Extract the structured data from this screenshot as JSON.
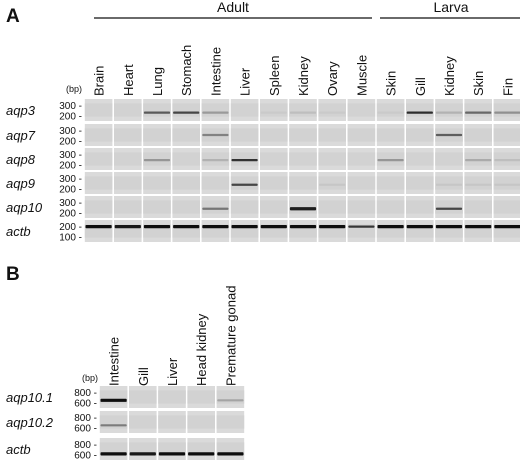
{
  "panel_a": {
    "letter": "A",
    "groups": [
      {
        "label": "Adult",
        "lanes": 10
      },
      {
        "label": "Larva",
        "lanes": 5
      }
    ],
    "lanes": [
      "Brain",
      "Heart",
      "Lung",
      "Stomach",
      "Intestine",
      "Liver",
      "Spleen",
      "Kidney",
      "Ovary",
      "Muscle",
      "Skin",
      "Gill",
      "Kidney",
      "Skin",
      "Fin"
    ],
    "unit": "(bp)",
    "rows": [
      {
        "gene": "aqp3",
        "ticks": [
          "300 -",
          "200 -"
        ],
        "bands": [
          0,
          0,
          0.62,
          0.72,
          0.3,
          0,
          0.06,
          0.12,
          0.06,
          0,
          0.06,
          0.85,
          0.18,
          0.55,
          0.35
        ],
        "band_pos": 0.62
      },
      {
        "gene": "aqp7",
        "ticks": [
          "300 -",
          "200 -"
        ],
        "bands": [
          0,
          0,
          0,
          0,
          0.42,
          0,
          0,
          0,
          0,
          0,
          0,
          0,
          0.6,
          0,
          0
        ],
        "band_pos": 0.5
      },
      {
        "gene": "aqp8",
        "ticks": [
          "300 -",
          "200 -"
        ],
        "bands": [
          0,
          0,
          0.32,
          0,
          0.18,
          0.82,
          0,
          0,
          0,
          0,
          0.32,
          0,
          0,
          0.22,
          0.12
        ],
        "band_pos": 0.55
      },
      {
        "gene": "aqp9",
        "ticks": [
          "300 -",
          "200 -"
        ],
        "bands": [
          0,
          0,
          0,
          0,
          0,
          0.72,
          0,
          0,
          0.08,
          0,
          0,
          0,
          0.08,
          0.08,
          0.08
        ],
        "band_pos": 0.58
      },
      {
        "gene": "aqp10",
        "ticks": [
          "300 -",
          "200 -"
        ],
        "bands": [
          0,
          0,
          0,
          0,
          0.48,
          0,
          0,
          0.92,
          0,
          0,
          0,
          0,
          0.72,
          0,
          0
        ],
        "band_pos": 0.58
      },
      {
        "gene": "actb",
        "ticks": [
          "200 -",
          "100 -"
        ],
        "bands": [
          1,
          0.95,
          1,
          1,
          1,
          1,
          1,
          1,
          1,
          0.8,
          1,
          1,
          1,
          1,
          1
        ],
        "band_pos": 0.3
      }
    ]
  },
  "panel_b": {
    "letter": "B",
    "lanes": [
      "Intestine",
      "Gill",
      "Liver",
      "Head kidney",
      "Premature gonad"
    ],
    "unit": "(bp)",
    "rows": [
      {
        "gene": "aqp10.1",
        "ticks": [
          "800 -",
          "600 -"
        ],
        "bands": [
          1,
          0,
          0,
          0,
          0.25
        ],
        "band_pos": 0.65
      },
      {
        "gene": "aqp10.2",
        "ticks": [
          "800 -",
          "600 -"
        ],
        "bands": [
          0.45,
          0,
          0,
          0,
          0
        ],
        "band_pos": 0.65
      },
      {
        "gene": "actb",
        "ticks": [
          "800 -",
          "600 -"
        ],
        "bands": [
          1,
          0.95,
          1,
          1,
          1
        ],
        "band_pos": 0.72
      }
    ]
  },
  "colors": {
    "gel_bg": "#dadada",
    "band": "#111111",
    "separator": "#ffffff"
  }
}
